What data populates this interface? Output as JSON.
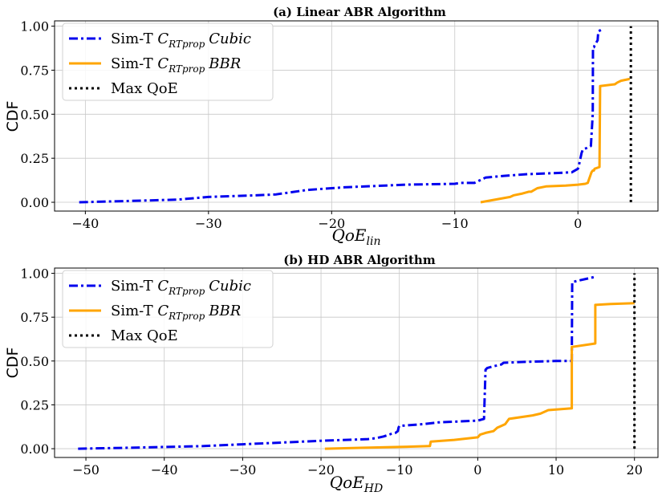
{
  "chart_data": [
    {
      "type": "line",
      "title": "(a) Linear ABR Algorithm",
      "xlabel": "QoE_lin",
      "ylabel": "CDF",
      "xlim": [
        -42.5,
        6.5
      ],
      "ylim": [
        -0.05,
        1.03
      ],
      "xticks": [
        -40,
        -30,
        -20,
        -10,
        0
      ],
      "yticks": [
        0.0,
        0.25,
        0.5,
        0.75,
        1.0
      ],
      "xtick_labels": [
        "−40",
        "−30",
        "−20",
        "−10",
        "0"
      ],
      "ytick_labels": [
        "0.00",
        "0.25",
        "0.50",
        "0.75",
        "1.00"
      ],
      "grid": true,
      "legend_position": "top-left",
      "series": [
        {
          "name": "Sim-T C_RTprop Cubic",
          "color": "#0000ee",
          "style": "dashdot",
          "x": [
            -40.5,
            -35,
            -32.5,
            -30,
            -26,
            -24.5,
            -22,
            -19,
            -14,
            -10,
            -9.5,
            -8.4,
            -8.1,
            -7.5,
            -6,
            -4,
            -2,
            -0.5,
            0,
            0.05,
            0.3,
            0.4,
            0.8,
            1.05,
            1.2,
            1.22,
            1.3,
            1.35,
            1.6,
            1.65,
            1.9
          ],
          "y": [
            0.0,
            0.01,
            0.015,
            0.03,
            0.04,
            0.045,
            0.07,
            0.085,
            0.1,
            0.105,
            0.11,
            0.11,
            0.12,
            0.14,
            0.15,
            0.16,
            0.165,
            0.17,
            0.19,
            0.2,
            0.28,
            0.3,
            0.31,
            0.32,
            0.5,
            0.88,
            0.88,
            0.89,
            0.92,
            0.97,
            0.98
          ]
        },
        {
          "name": "Sim-T C_RTprop BBR",
          "color": "#ffa500",
          "style": "solid",
          "x": [
            -7.9,
            -5.5,
            -5.2,
            -4.5,
            -4,
            -3.8,
            -3.3,
            -2.6,
            -1,
            0,
            0.6,
            0.8,
            1.1,
            1.2,
            1.3,
            1.35,
            1.75,
            1.8,
            3,
            3.2,
            3.5,
            4.2
          ],
          "y": [
            0.0,
            0.03,
            0.04,
            0.05,
            0.06,
            0.06,
            0.08,
            0.09,
            0.095,
            0.1,
            0.105,
            0.11,
            0.17,
            0.18,
            0.18,
            0.19,
            0.2,
            0.66,
            0.67,
            0.68,
            0.69,
            0.7
          ]
        },
        {
          "name": "Max QoE",
          "color": "#000000",
          "style": "dotted",
          "x": [
            4.3,
            4.3
          ],
          "y": [
            0.0,
            1.0
          ]
        }
      ]
    },
    {
      "type": "line",
      "title": "(b) HD ABR Algorithm",
      "xlabel": "QoE_HD",
      "ylabel": "CDF",
      "xlim": [
        -54,
        23
      ],
      "ylim": [
        -0.05,
        1.03
      ],
      "xticks": [
        -50,
        -40,
        -30,
        -20,
        -10,
        0,
        10,
        20
      ],
      "yticks": [
        0.0,
        0.25,
        0.5,
        0.75,
        1.0
      ],
      "xtick_labels": [
        "−50",
        "−40",
        "−30",
        "−20",
        "−10",
        "0",
        "10",
        "20"
      ],
      "ytick_labels": [
        "0.00",
        "0.25",
        "0.50",
        "0.75",
        "1.00"
      ],
      "grid": true,
      "legend_position": "top-left",
      "series": [
        {
          "name": "Sim-T C_RTprop Cubic",
          "color": "#0000ee",
          "style": "dashdot",
          "x": [
            -51,
            -45,
            -35,
            -30,
            -20,
            -14,
            -13,
            -12,
            -11,
            -10.5,
            -10.2,
            -10.1,
            -10,
            -7,
            -5,
            0,
            0.8,
            0.9,
            1,
            1.2,
            2,
            3,
            3.3,
            6,
            10,
            12,
            12.05,
            13,
            14,
            15
          ],
          "y": [
            0.0,
            0.005,
            0.015,
            0.025,
            0.045,
            0.055,
            0.06,
            0.07,
            0.085,
            0.09,
            0.1,
            0.12,
            0.13,
            0.14,
            0.15,
            0.16,
            0.17,
            0.32,
            0.45,
            0.46,
            0.47,
            0.48,
            0.49,
            0.495,
            0.5,
            0.5,
            0.95,
            0.96,
            0.97,
            0.98
          ]
        },
        {
          "name": "Sim-T C_RTprop BBR",
          "color": "#ffa500",
          "style": "solid",
          "x": [
            -19.5,
            -15,
            -10,
            -6.1,
            -6,
            -3,
            0,
            0.3,
            1,
            2,
            2.5,
            3,
            3.5,
            4,
            7,
            8,
            9,
            12,
            12,
            15,
            15,
            17,
            20
          ],
          "y": [
            0.0,
            0.005,
            0.01,
            0.015,
            0.04,
            0.05,
            0.065,
            0.08,
            0.09,
            0.1,
            0.12,
            0.13,
            0.14,
            0.17,
            0.19,
            0.2,
            0.22,
            0.23,
            0.58,
            0.6,
            0.82,
            0.825,
            0.83
          ]
        },
        {
          "name": "Max QoE",
          "color": "#000000",
          "style": "dotted",
          "x": [
            20,
            20
          ],
          "y": [
            0.0,
            1.0
          ]
        }
      ]
    }
  ],
  "legend": {
    "entries": [
      {
        "prefix": "Sim-T ",
        "c": "C",
        "sub": "RTprop",
        "suffix": "Cubic"
      },
      {
        "prefix": "Sim-T ",
        "c": "C",
        "sub": "RTprop",
        "suffix": "BBR"
      },
      {
        "prefix": "Max QoE",
        "c": "",
        "sub": "",
        "suffix": ""
      }
    ]
  },
  "axes_text": {
    "a_xlabel_base": "QoE",
    "a_xlabel_sub": "lin",
    "b_xlabel_base": "QoE",
    "b_xlabel_sub": "HD",
    "ylabel": "CDF"
  }
}
